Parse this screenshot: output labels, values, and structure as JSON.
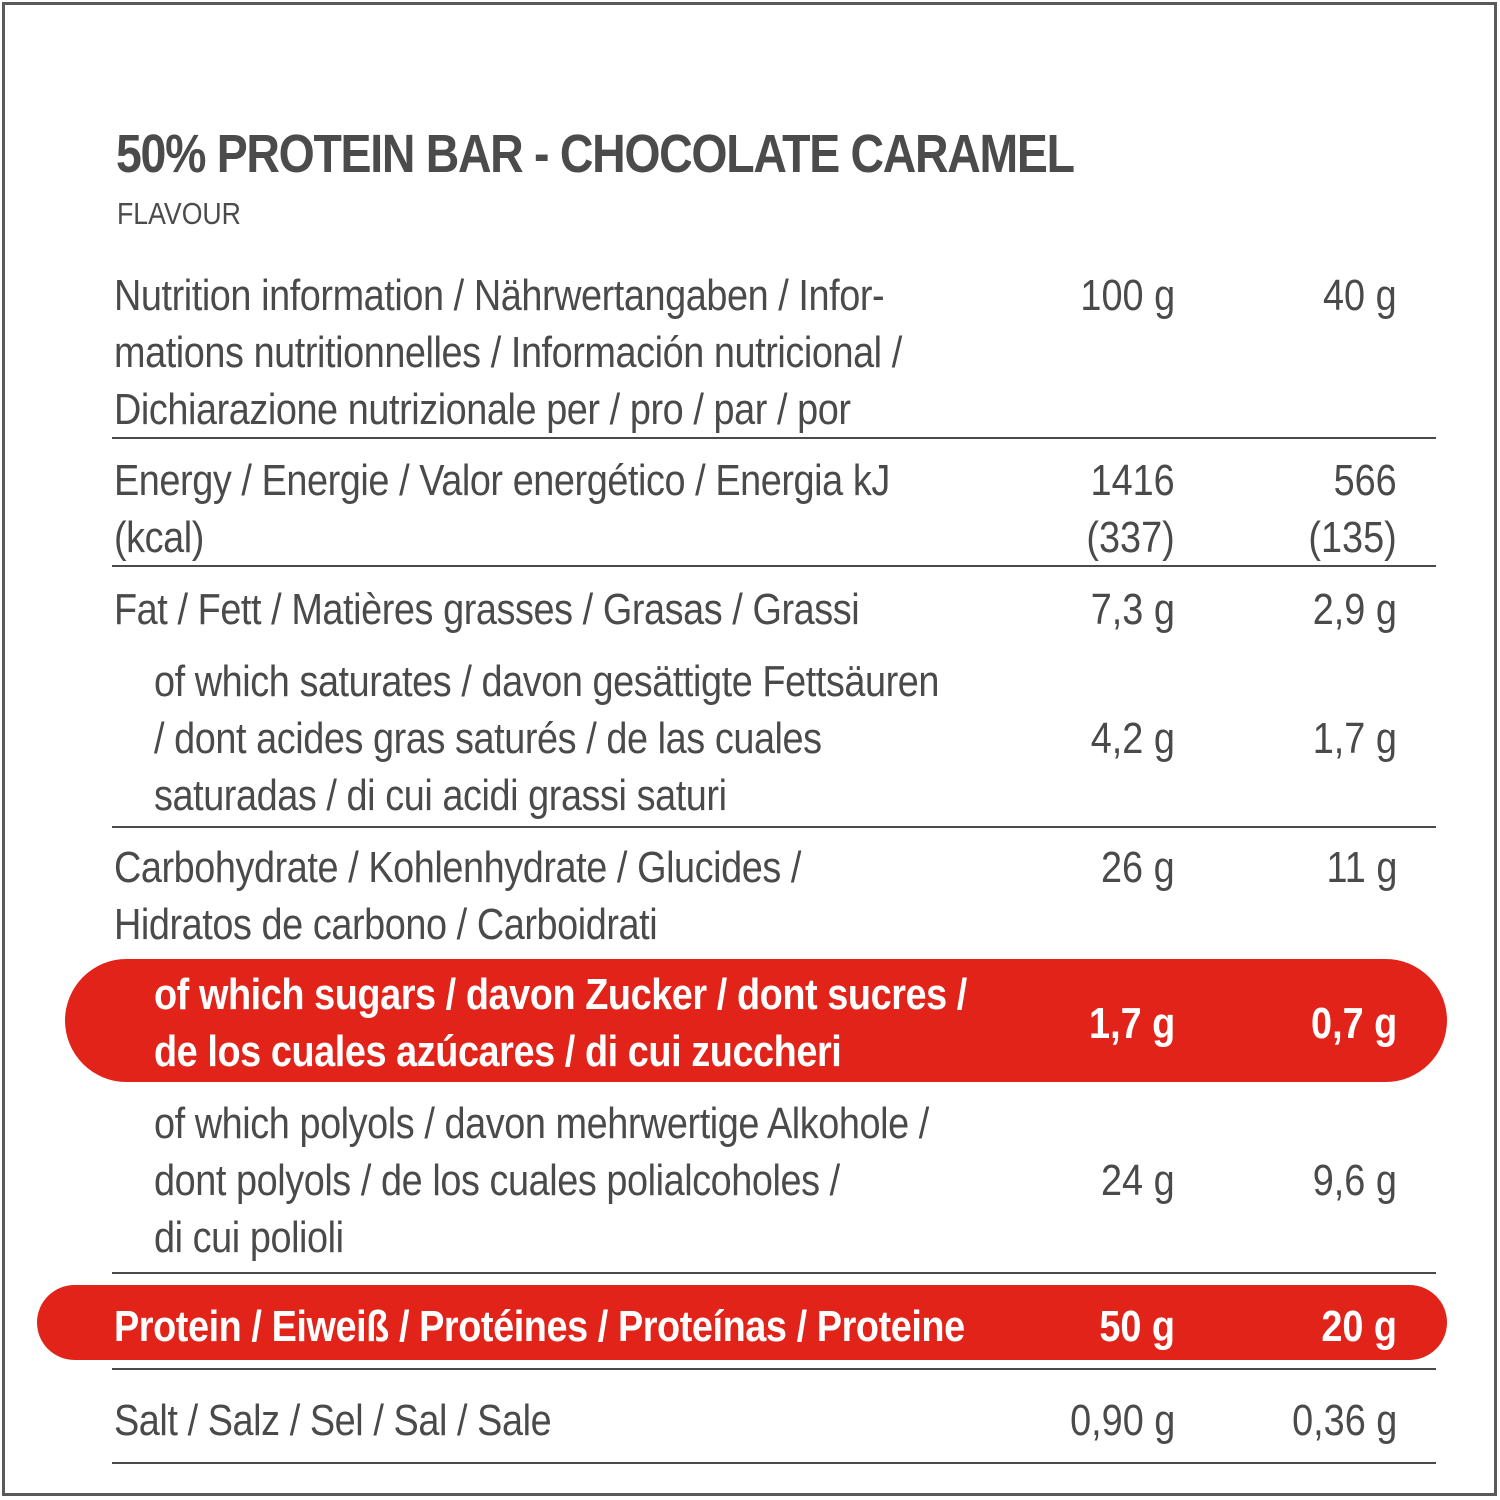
{
  "title": "50% PROTEIN BAR - CHOCOLATE CARAMEL",
  "subtitle": "FLAVOUR",
  "highlight_color": "#e2231a",
  "text_color": "#4a4a4a",
  "header": {
    "label": "Nutrition information / Nährwertangaben / Infor-\nmations nutritionnelles / Información nutricional /\nDichiarazione nutrizionale per / pro / par / por",
    "col1": "100 g",
    "col2": "40 g"
  },
  "rows": {
    "energy": {
      "label": "Energy / Energie / Valor energético / Energia kJ\n(kcal)",
      "v1": "1416\n(337)",
      "v2": "566\n(135)"
    },
    "fat": {
      "label": "Fat / Fett / Matières grasses / Grasas / Grassi",
      "v1": "7,3 g",
      "v2": "2,9 g"
    },
    "saturates": {
      "label": "of which saturates / davon gesättigte Fettsäuren\n/ dont acides gras saturés / de las cuales\nsaturadas / di cui acidi grassi saturi",
      "v1": "4,2 g",
      "v2": "1,7 g"
    },
    "carbohydrate": {
      "label": "Carbohydrate / Kohlenhydrate / Glucides /\nHidratos de carbono / Carboidrati",
      "v1": "26 g",
      "v2": "11 g"
    },
    "sugars": {
      "label": "of which sugars / davon Zucker / dont sucres /\nde los cuales azúcares / di cui zuccheri",
      "v1": "1,7 g",
      "v2": "0,7 g"
    },
    "polyols": {
      "label": "of which polyols / davon mehrwertige Alkohole /\ndont polyols / de los cuales polialcoholes /\ndi cui polioli",
      "v1": "24 g",
      "v2": "9,6 g"
    },
    "protein": {
      "label": "Protein / Eiweiß / Protéines / Proteínas / Proteine",
      "v1": "50 g",
      "v2": "20 g"
    },
    "salt": {
      "label": "Salt / Salz / Sel / Sal / Sale",
      "v1": "0,90 g",
      "v2": "0,36 g"
    }
  }
}
